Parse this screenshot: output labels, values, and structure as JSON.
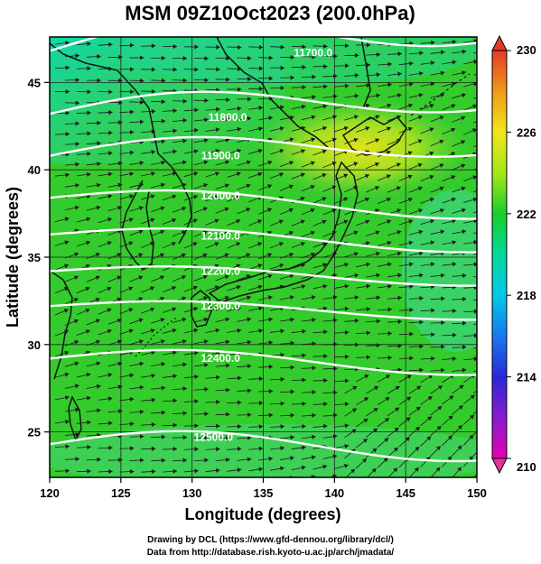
{
  "chart_data": {
    "type": "heatmap",
    "title": "MSM 09Z10Oct2023 (200.0hPa)",
    "xlabel": "Longitude (degrees)",
    "ylabel": "Latitude  (degrees)",
    "xlim": [
      120,
      150
    ],
    "ylim": [
      22.4,
      47.6
    ],
    "x_ticks": [
      "120",
      "125",
      "130",
      "135",
      "140",
      "145",
      "150"
    ],
    "x_tick_values": [
      120,
      125,
      130,
      135,
      140,
      145,
      150
    ],
    "y_ticks": [
      "25",
      "30",
      "35",
      "40",
      "45"
    ],
    "y_tick_values": [
      25,
      30,
      35,
      40,
      45
    ],
    "colorbar": {
      "min": 210,
      "max": 230,
      "ticks": [
        "210",
        "214",
        "218",
        "222",
        "226",
        "230"
      ],
      "tick_values": [
        210,
        214,
        218,
        222,
        226,
        230
      ]
    },
    "contours": [
      {
        "label": "11700.0",
        "lon": 138.5,
        "lat": 46.5
      },
      {
        "label": "11800.0",
        "lon": 132.5,
        "lat": 42.8
      },
      {
        "label": "11900.0",
        "lon": 132.0,
        "lat": 40.6
      },
      {
        "label": "12000.0",
        "lon": 132.0,
        "lat": 38.3
      },
      {
        "label": "12100.0",
        "lon": 132.0,
        "lat": 36.0
      },
      {
        "label": "12200.0",
        "lon": 132.0,
        "lat": 34.0
      },
      {
        "label": "12300.0",
        "lon": 132.0,
        "lat": 32.0
      },
      {
        "label": "12400.0",
        "lon": 132.0,
        "lat": 29.0
      },
      {
        "label": "12500.0",
        "lon": 131.5,
        "lat": 24.5
      }
    ]
  },
  "credits": {
    "line1": "Drawing by DCL (https://www.gfd-dennou.org/library/dcl/)",
    "line2": "Data from http://database.rish.kyoto-u.ac.jp/arch/jmadata/"
  }
}
